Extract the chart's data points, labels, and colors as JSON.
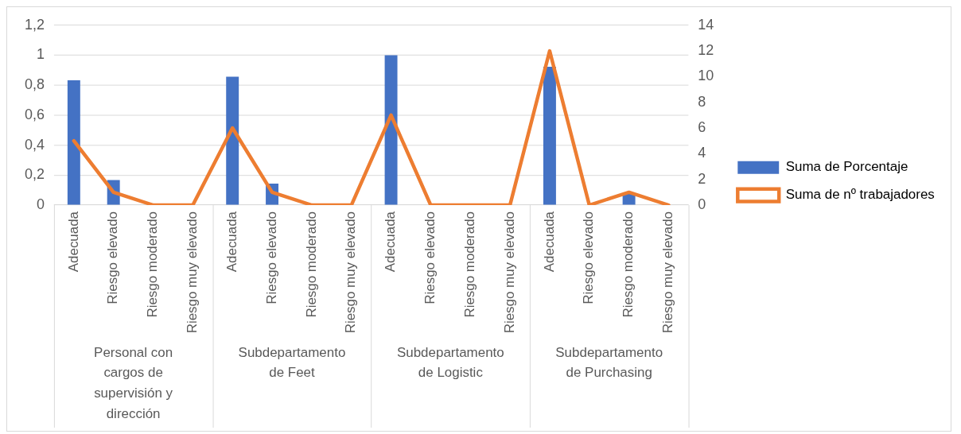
{
  "chart_data": {
    "type": "bar",
    "categories": [
      "Adecuada",
      "Riesgo elevado",
      "Riesgo moderado",
      "Riesgo muy elevado",
      "Adecuada",
      "Riesgo elevado",
      "Riesgo moderado",
      "Riesgo muy elevado",
      "Adecuada",
      "Riesgo elevado",
      "Riesgo moderado",
      "Riesgo muy elevado",
      "Adecuada",
      "Riesgo elevado",
      "Riesgo moderado",
      "Riesgo muy elevado"
    ],
    "series": [
      {
        "name": "Suma de Porcentaje",
        "color": "#4472c4",
        "values": [
          0.833,
          0.167,
          0,
          0,
          0.857,
          0.143,
          0,
          0,
          1,
          0,
          0,
          0,
          0.923,
          0,
          0.077,
          0
        ]
      },
      {
        "name": "Suma de nº trabajadores",
        "type": "line",
        "axis": "y2",
        "color": "#ed7d31",
        "values": [
          5,
          1,
          0,
          0,
          6,
          1,
          0,
          0,
          7,
          0,
          0,
          0,
          12,
          0,
          1,
          0
        ]
      }
    ],
    "ylim": [
      0,
      1.2
    ],
    "yticks": [
      0,
      {
        "value": 0.2,
        "label": "0,2"
      },
      {
        "value": 0.4,
        "label": "0,4"
      },
      {
        "value": 0.6,
        "label": "0,6"
      },
      {
        "value": 0.8,
        "label": "0,8"
      },
      1,
      {
        "value": 1.2,
        "label": "1,2"
      }
    ],
    "y2lim": [
      0,
      14
    ],
    "y2ticks": [
      0,
      2,
      4,
      6,
      8,
      10,
      12,
      14
    ],
    "annotations": [
      "Personal con cargos de supervisión y dirección",
      "Subdepartamento de Feet",
      "Subdepartamento de Logistic",
      "Subdepartamento de Purchasing"
    ],
    "grid": "y",
    "legend": "right",
    "marker": "none"
  }
}
